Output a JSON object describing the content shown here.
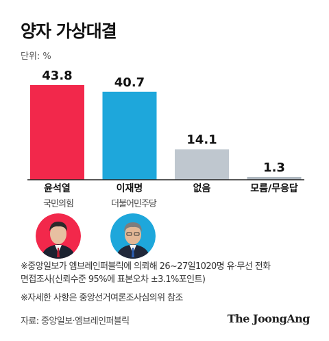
{
  "title": "양자 가상대결",
  "unit_label": "단위: %",
  "colors": {
    "yoon": "#f2284b",
    "lee": "#1ea7db",
    "none": "#bfc7cf",
    "unknown": "#aeb7bf",
    "axis": "#222222"
  },
  "candidates": [
    {
      "name": "윤석열",
      "party": "국민의힘",
      "icon": "portrait-yoon"
    },
    {
      "name": "이재명",
      "party": "더불어민주당",
      "icon": "portrait-lee"
    }
  ],
  "chart_data": {
    "type": "bar",
    "categories": [
      "윤석열",
      "이재명",
      "없음",
      "모름/무응답"
    ],
    "values": [
      43.8,
      40.7,
      14.1,
      1.3
    ],
    "value_labels": [
      "43.8",
      "40.7",
      "14.1",
      "1.3"
    ],
    "ylim": [
      0,
      43.8
    ],
    "grid": false,
    "legend": "none",
    "title": "양자 가상대결",
    "xlabel": "",
    "ylabel": ""
  },
  "notes": {
    "line1": "※중앙일보가 엠브레인퍼블릭에 의뢰해 26~27일1020명 유·무선 전화",
    "line2": "면접조사(신뢰수준 95%에 표본오차 ±3.1%포인트)",
    "line3": "※자세한 사항은 중앙선거여론조사심의위 참조"
  },
  "source": "자료: 중앙일보·엠브레인퍼블릭",
  "brand": "The JoongAng"
}
